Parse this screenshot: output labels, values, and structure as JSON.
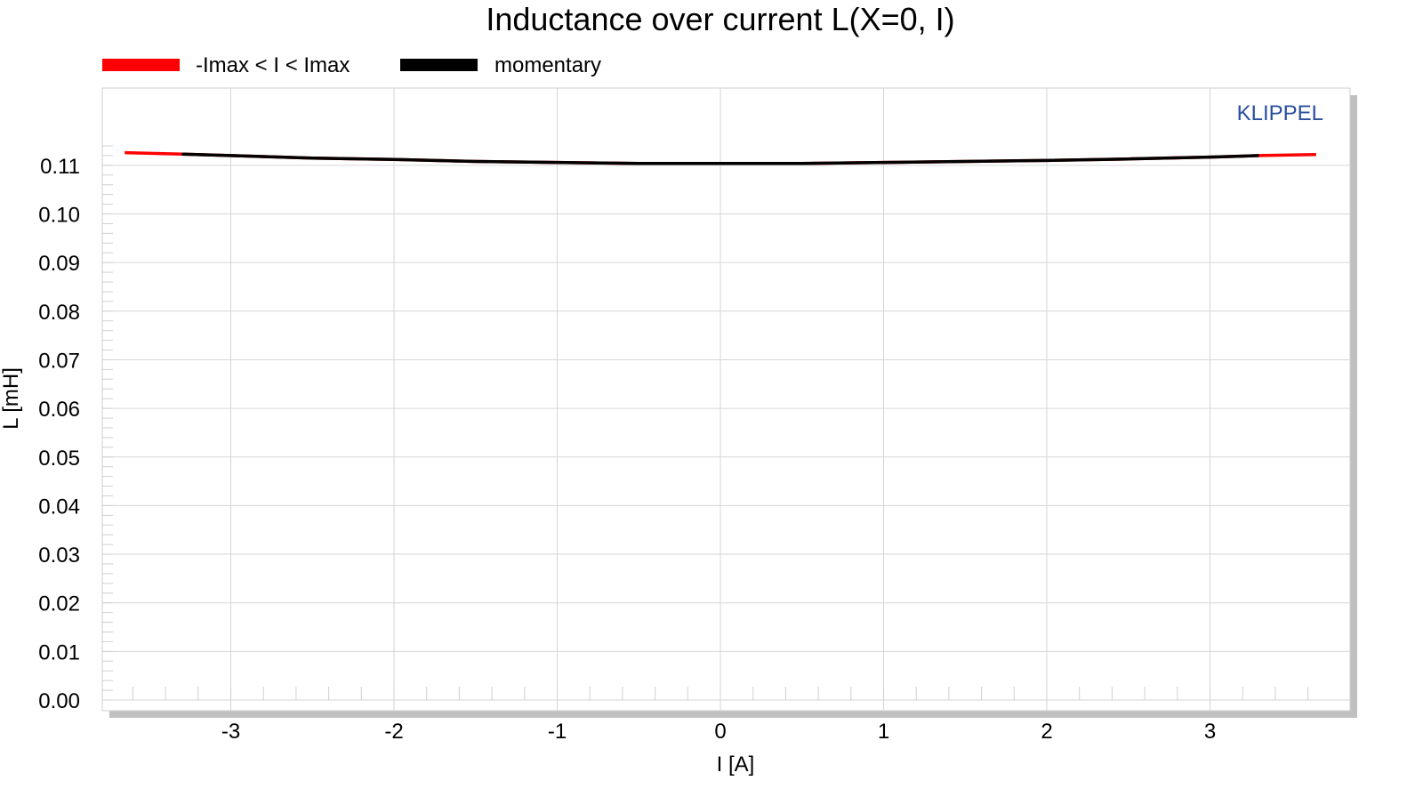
{
  "chart_data": {
    "type": "line",
    "title": "Inductance over current L(X=0, I)",
    "xlabel": "I [A]",
    "ylabel": "L [mH]",
    "xlim": [
      -3.75,
      3.9
    ],
    "ylim": [
      0.0,
      0.115
    ],
    "x_ticks": [
      -3,
      -2,
      -1,
      0,
      1,
      2,
      3
    ],
    "x_tick_labels": [
      "-3",
      "-2",
      "-1",
      "0",
      "1",
      "2",
      "3"
    ],
    "y_ticks": [
      0.0,
      0.01,
      0.02,
      0.03,
      0.04,
      0.05,
      0.06,
      0.07,
      0.08,
      0.09,
      0.1,
      0.11
    ],
    "y_tick_labels": [
      "0.00",
      "0.01",
      "0.02",
      "0.03",
      "0.04",
      "0.05",
      "0.06",
      "0.07",
      "0.08",
      "0.09",
      "0.10",
      "0.11"
    ],
    "grid": true,
    "legend_position": "top-left",
    "watermark": "KLIPPEL",
    "series": [
      {
        "name": "-Imax < I < Imax",
        "color": "#ff0000",
        "x": [
          -3.65,
          -3.3,
          -3.0,
          -2.5,
          -2.0,
          -1.5,
          -1.0,
          -0.5,
          0.0,
          0.5,
          1.0,
          1.5,
          2.0,
          2.5,
          3.0,
          3.3,
          3.65
        ],
        "y": [
          0.1126,
          0.1123,
          0.112,
          0.1115,
          0.1112,
          0.1108,
          0.1106,
          0.1104,
          0.1104,
          0.1104,
          0.1106,
          0.1108,
          0.111,
          0.1113,
          0.1117,
          0.112,
          0.1122
        ]
      },
      {
        "name": "momentary",
        "color": "#000000",
        "x": [
          -3.3,
          -3.0,
          -2.5,
          -2.0,
          -1.5,
          -1.0,
          -0.5,
          0.0,
          0.5,
          1.0,
          1.5,
          2.0,
          2.5,
          3.0,
          3.3
        ],
        "y": [
          0.1123,
          0.112,
          0.1115,
          0.1112,
          0.1108,
          0.1106,
          0.1104,
          0.1104,
          0.1104,
          0.1106,
          0.1108,
          0.111,
          0.1113,
          0.1117,
          0.112
        ]
      }
    ]
  }
}
